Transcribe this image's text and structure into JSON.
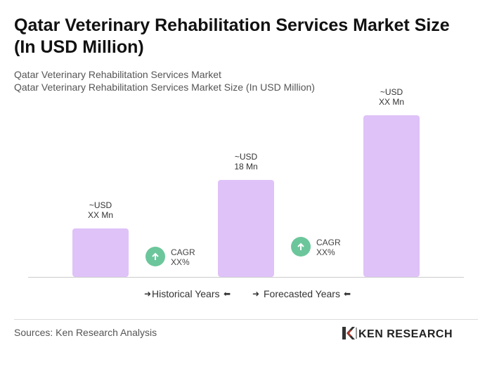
{
  "chart_data": {
    "type": "bar",
    "title": [
      "Qatar Veterinary Rehabilitation Services Market Size",
      "(In USD Million)"
    ],
    "subtitle": [
      "Qatar Veterinary Rehabilitation Services Market",
      "Qatar Veterinary Rehabilitation Services Market Size (In USD Million)"
    ],
    "categories": [
      null,
      null,
      null
    ],
    "values": [
      9,
      18,
      30
    ],
    "value_labels": [
      [
        "~USD",
        "XX Mn"
      ],
      [
        "~USD",
        "18 Mn"
      ],
      [
        "~USD",
        "XX Mn"
      ]
    ],
    "color": "#dfc2f8",
    "cagr": [
      [
        "CAGR",
        "XX%"
      ],
      [
        "CAGR",
        "XX%"
      ]
    ],
    "legend": [
      "Historical Years",
      "Forecasted Years"
    ],
    "source": "Sources: Ken Research Analysis",
    "logo": "KEN RESEARCH"
  }
}
